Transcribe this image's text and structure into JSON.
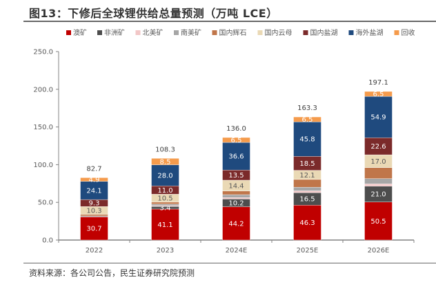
{
  "title": "图13：下修后全球锂供给总量预测（万吨 LCE）",
  "source": "资料来源：各公司公告，民生证券研究院预测",
  "chart_data": {
    "type": "bar",
    "stacked": true,
    "title": "下修后全球锂供给总量预测（万吨 LCE）",
    "xlabel": "",
    "ylabel": "",
    "ylim": [
      0,
      250
    ],
    "yticks": [
      0,
      50,
      100,
      150,
      200,
      250
    ],
    "ytick_labels": [
      "0.0",
      "50.0",
      "100.0",
      "150.0",
      "200.0",
      "250.0"
    ],
    "grid": false,
    "legend_position": "top",
    "categories": [
      "2022",
      "2023",
      "2024E",
      "2025E",
      "2026E"
    ],
    "totals": [
      82.7,
      108.3,
      136.0,
      163.3,
      197.1
    ],
    "total_labels": [
      "82.7",
      "108.3",
      "136.0",
      "163.3",
      "197.1"
    ],
    "series": [
      {
        "name": "澳矿",
        "color": "#C00000",
        "label_color": "#ffffff",
        "values": [
          30.7,
          41.1,
          44.2,
          46.3,
          50.5
        ],
        "labels": [
          "30.7",
          "41.1",
          "44.2",
          "46.3",
          "50.5"
        ]
      },
      {
        "name": "非洲矿",
        "color": "#4D4D4D",
        "label_color": "#ffffff",
        "values": [
          0.0,
          3.4,
          10.2,
          16.5,
          21.0
        ],
        "labels": [
          "",
          "3.4",
          "10.2",
          "16.5",
          "21.0"
        ]
      },
      {
        "name": "北美矿",
        "color": "#F2C7C7",
        "label_color": "#595959",
        "values": [
          0.0,
          1.2,
          2.0,
          2.5,
          3.0
        ],
        "labels": [
          "",
          "",
          "",
          "",
          ""
        ]
      },
      {
        "name": "南美矿",
        "color": "#A6A6A6",
        "label_color": "#595959",
        "values": [
          1.3,
          2.0,
          3.8,
          4.8,
          7.0
        ],
        "labels": [
          "",
          "",
          "",
          "",
          ""
        ]
      },
      {
        "name": "国内辉石",
        "color": "#C0764A",
        "label_color": "#ffffff",
        "values": [
          2.1,
          2.6,
          4.8,
          10.3,
          14.6
        ],
        "labels": [
          "",
          "",
          "",
          "",
          ""
        ]
      },
      {
        "name": "国内云母",
        "color": "#EAD9B5",
        "label_color": "#595959",
        "values": [
          10.3,
          10.5,
          14.4,
          12.1,
          17.0
        ],
        "labels": [
          "10.3",
          "10.5",
          "14.4",
          "12.1",
          "17.0"
        ]
      },
      {
        "name": "国内盐湖",
        "color": "#7B2A2A",
        "label_color": "#ffffff",
        "values": [
          9.3,
          11.0,
          13.5,
          18.5,
          22.6
        ],
        "labels": [
          "9.3",
          "11.0",
          "13.5",
          "18.5",
          "22.6"
        ]
      },
      {
        "name": "海外盐湖",
        "color": "#1F4A7E",
        "label_color": "#ffffff",
        "values": [
          24.1,
          28.0,
          36.6,
          45.8,
          54.9
        ],
        "labels": [
          "24.1",
          "28.0",
          "36.6",
          "45.8",
          "54.9"
        ]
      },
      {
        "name": "回收",
        "color": "#F59B4C",
        "label_color": "#ffffff",
        "values": [
          4.9,
          8.5,
          6.5,
          6.5,
          6.5
        ],
        "labels": [
          "4.9",
          "8.5",
          "6.5",
          "6.5",
          "6.5"
        ]
      }
    ]
  }
}
